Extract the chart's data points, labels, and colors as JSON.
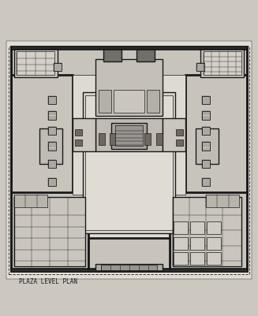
{
  "bg_color": "#ccc8c0",
  "paper_color": "#e2ddd6",
  "title": "PLAZA LEVEL PLAN",
  "title_fontsize": 5.5,
  "line_color": "#1a1a1a",
  "light_gray": "#b0aaa0",
  "medium_gray": "#888078",
  "dark_gray": "#404040",
  "wall_color": "#c8c4bc",
  "floor_color": "#dedad2"
}
